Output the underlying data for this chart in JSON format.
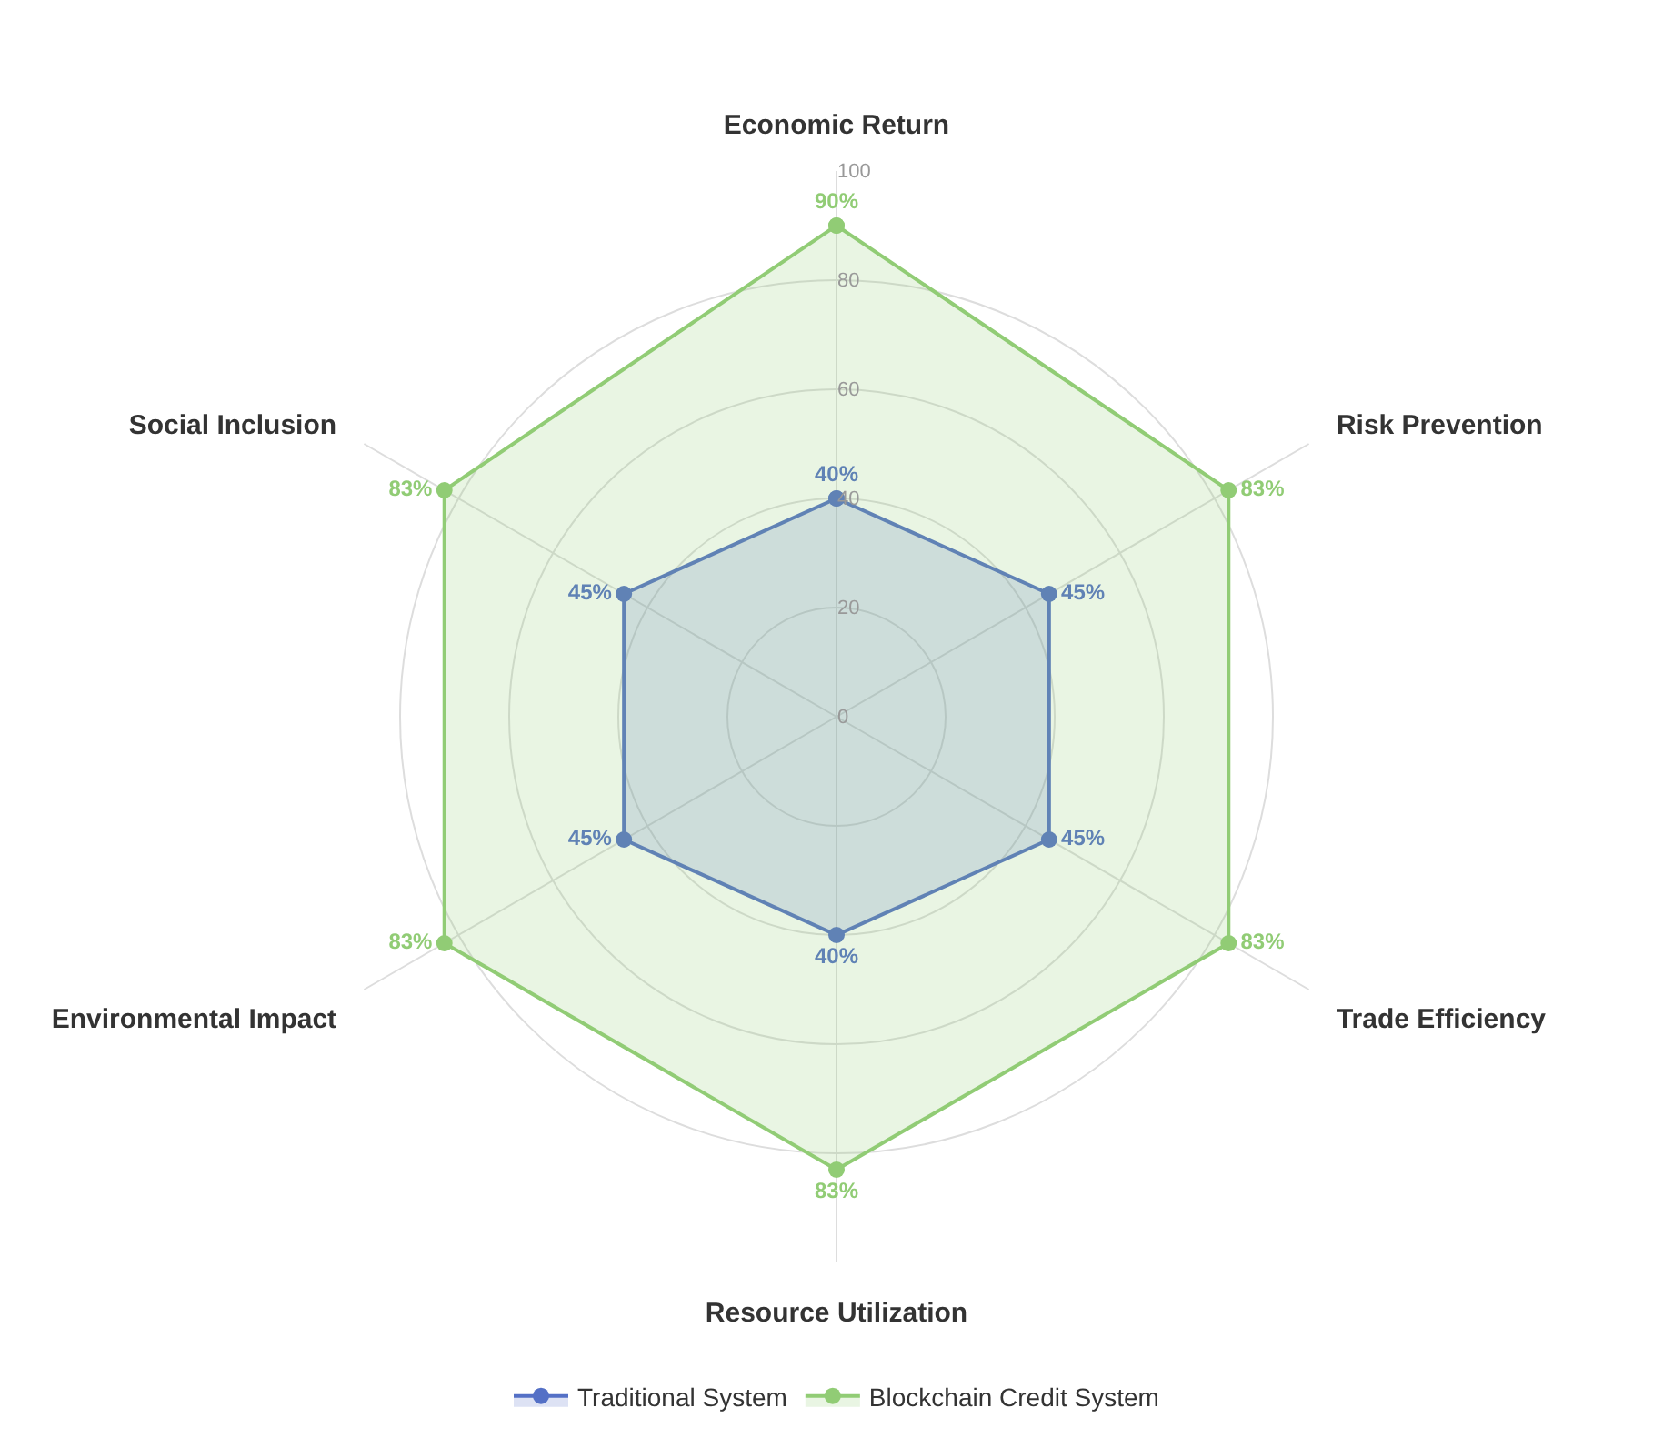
{
  "chart_data": {
    "type": "radar",
    "categories": [
      "Economic Return",
      "Risk Prevention",
      "Trade Efficiency",
      "Resource Utilization",
      "Environmental Impact",
      "Social Inclusion"
    ],
    "ylim": [
      0,
      100
    ],
    "yticks": [
      0,
      20,
      40,
      60,
      80,
      100
    ],
    "grid": true,
    "legend": "bottom",
    "marker": "circle",
    "series": [
      {
        "name": "Traditional System",
        "color": "#5470c6",
        "values": [
          40,
          45,
          45,
          40,
          45,
          45
        ],
        "value_labels": [
          "40%",
          "45%",
          "45%",
          "40%",
          "45%",
          "45%"
        ]
      },
      {
        "name": "Blockchain Credit System",
        "color": "#91cc75",
        "values": [
          90,
          83,
          83,
          83,
          83,
          83
        ],
        "value_labels": [
          "90%",
          "83%",
          "83%",
          "83%",
          "83%",
          "83%"
        ]
      }
    ]
  }
}
